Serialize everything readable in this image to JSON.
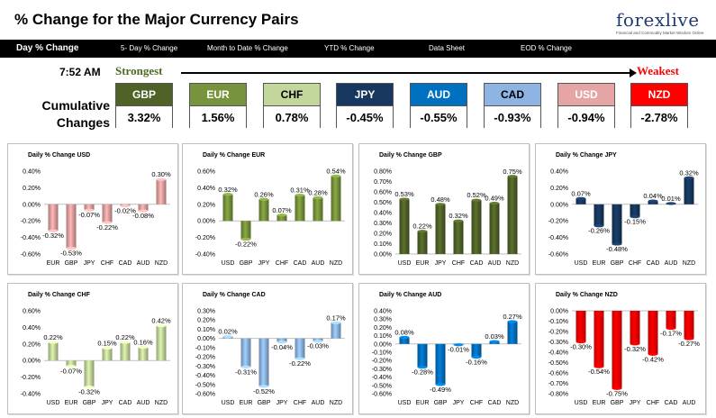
{
  "header": {
    "title": "% Change for the Major Currency Pairs",
    "logo": "forexlive",
    "logo_tag": "Financial and Commodity Market Wisdom Online"
  },
  "nav": {
    "items": [
      "Day % Change",
      "5- Day % Change",
      "Month to Date % Change",
      "YTD % Change",
      "Data Sheet",
      "EOD % Change"
    ]
  },
  "ranking": {
    "time": "7:52 AM",
    "strongest_label": "Strongest",
    "weakest_label": "Weakest",
    "cumulative_label_1": "Cumulative",
    "cumulative_label_2": "Changes",
    "currencies": [
      {
        "code": "GBP",
        "value": "3.32%",
        "head_color": "#4f6228",
        "head_text_color": "#ffffff"
      },
      {
        "code": "EUR",
        "value": "1.56%",
        "head_color": "#77933c",
        "head_text_color": "#ffffff"
      },
      {
        "code": "CHF",
        "value": "0.78%",
        "head_color": "#c3d69b",
        "head_text_color": "#000000"
      },
      {
        "code": "JPY",
        "value": "-0.45%",
        "head_color": "#17375e",
        "head_text_color": "#ffffff"
      },
      {
        "code": "AUD",
        "value": "-0.55%",
        "head_color": "#0070c0",
        "head_text_color": "#ffffff"
      },
      {
        "code": "CAD",
        "value": "-0.93%",
        "head_color": "#8db4e2",
        "head_text_color": "#000000"
      },
      {
        "code": "USD",
        "value": "-0.94%",
        "head_color": "#e6a5a5",
        "head_text_color": "#ffffff"
      },
      {
        "code": "NZD",
        "value": "-2.78%",
        "head_color": "#ff0000",
        "head_text_color": "#ffffff"
      }
    ]
  },
  "chart_data": [
    {
      "type": "bar",
      "title": "Daily % Change USD",
      "color": "#e6a0a0",
      "categories": [
        "EUR",
        "GBP",
        "JPY",
        "CHF",
        "CAD",
        "AUD",
        "NZD"
      ],
      "values": [
        -0.32,
        -0.53,
        -0.07,
        -0.22,
        -0.02,
        -0.08,
        0.3
      ],
      "labels": [
        "-0.32%",
        "-0.53%",
        "-0.07%",
        "-0.22%",
        "-0.02%",
        "-0.08%",
        "0.30%"
      ],
      "ylim": [
        -0.6,
        0.4
      ],
      "ticks": [
        "0.40%",
        "0.20%",
        "0.00%",
        "-0.20%",
        "-0.40%",
        "-0.60%"
      ]
    },
    {
      "type": "bar",
      "title": "Daily % Change EUR",
      "color": "#77933c",
      "categories": [
        "USD",
        "GBP",
        "JPY",
        "CHF",
        "CAD",
        "AUD",
        "NZD"
      ],
      "values": [
        0.32,
        -0.22,
        0.26,
        0.07,
        0.31,
        0.28,
        0.54
      ],
      "labels": [
        "0.32%",
        "-0.22%",
        "0.26%",
        "0.07%",
        "0.31%",
        "0.28%",
        "0.54%"
      ],
      "ylim": [
        -0.4,
        0.6
      ],
      "ticks": [
        "0.60%",
        "0.40%",
        "0.20%",
        "0.00%",
        "-0.20%",
        "-0.40%"
      ]
    },
    {
      "type": "bar",
      "title": "Daily % Change GBP",
      "color": "#4f6228",
      "categories": [
        "USD",
        "EUR",
        "JPY",
        "CHF",
        "CAD",
        "AUD",
        "NZD"
      ],
      "values": [
        0.53,
        0.22,
        0.48,
        0.32,
        0.52,
        0.49,
        0.75
      ],
      "labels": [
        "0.53%",
        "0.22%",
        "0.48%",
        "0.32%",
        "0.52%",
        "0.49%",
        "0.75%"
      ],
      "ylim": [
        0,
        0.8
      ],
      "ticks": [
        "0.80%",
        "0.70%",
        "0.60%",
        "0.50%",
        "0.40%",
        "0.30%",
        "0.20%",
        "0.10%",
        "0.00%"
      ]
    },
    {
      "type": "bar",
      "title": "Daily % Change JPY",
      "color": "#17375e",
      "categories": [
        "USD",
        "EUR",
        "GBP",
        "CHF",
        "CAD",
        "AUD",
        "NZD"
      ],
      "values": [
        0.07,
        -0.26,
        -0.48,
        -0.15,
        0.04,
        0.01,
        0.32
      ],
      "labels": [
        "0.07%",
        "-0.26%",
        "-0.48%",
        "-0.15%",
        "0.04%",
        "0.01%",
        "0.32%"
      ],
      "ylim": [
        -0.6,
        0.4
      ],
      "ticks": [
        "0.40%",
        "0.20%",
        "0.00%",
        "-0.20%",
        "-0.40%",
        "-0.60%"
      ]
    },
    {
      "type": "bar",
      "title": "Daily % Change CHF",
      "color": "#c3d69b",
      "categories": [
        "USD",
        "EUR",
        "GBP",
        "JPY",
        "CAD",
        "AUD",
        "NZD"
      ],
      "values": [
        0.22,
        -0.07,
        -0.32,
        0.15,
        0.22,
        0.16,
        0.42
      ],
      "labels": [
        "0.22%",
        "-0.07%",
        "-0.32%",
        "0.15%",
        "0.22%",
        "0.16%",
        "0.42%"
      ],
      "ylim": [
        -0.4,
        0.6
      ],
      "ticks": [
        "0.60%",
        "0.40%",
        "0.20%",
        "0.00%",
        "-0.20%",
        "-0.40%"
      ]
    },
    {
      "type": "bar",
      "title": "Daily % Change CAD",
      "color": "#8db4e2",
      "categories": [
        "USD",
        "EUR",
        "GBP",
        "JPY",
        "CHF",
        "AUD",
        "NZD"
      ],
      "values": [
        0.02,
        -0.31,
        -0.52,
        -0.04,
        -0.22,
        -0.03,
        0.17
      ],
      "labels": [
        "0.02%",
        "-0.31%",
        "-0.52%",
        "-0.04%",
        "-0.22%",
        "-0.03%",
        "0.17%"
      ],
      "ylim": [
        -0.6,
        0.3
      ],
      "ticks": [
        "0.30%",
        "0.20%",
        "0.10%",
        "0.00%",
        "-0.10%",
        "-0.20%",
        "-0.30%",
        "-0.40%",
        "-0.50%",
        "-0.60%"
      ]
    },
    {
      "type": "bar",
      "title": "Daily % Change AUD",
      "color": "#0070c0",
      "categories": [
        "USD",
        "EUR",
        "GBP",
        "JPY",
        "CHF",
        "CAD",
        "NZD"
      ],
      "values": [
        0.08,
        -0.28,
        -0.49,
        -0.01,
        -0.16,
        0.03,
        0.27
      ],
      "labels": [
        "0.08%",
        "-0.28%",
        "-0.49%",
        "-0.01%",
        "-0.16%",
        "0.03%",
        "0.27%"
      ],
      "ylim": [
        -0.6,
        0.4
      ],
      "ticks": [
        "0.40%",
        "0.30%",
        "0.20%",
        "0.10%",
        "0.00%",
        "-0.10%",
        "-0.20%",
        "-0.30%",
        "-0.40%",
        "-0.50%",
        "-0.60%"
      ]
    },
    {
      "type": "bar",
      "title": "Daily % Change NZD",
      "color": "#ff0000",
      "categories": [
        "USD",
        "EUR",
        "GBP",
        "JPY",
        "CHF",
        "CAD",
        "AUD"
      ],
      "values": [
        -0.3,
        -0.54,
        -0.75,
        -0.32,
        -0.42,
        -0.17,
        -0.27
      ],
      "labels": [
        "-0.30%",
        "-0.54%",
        "-0.75%",
        "-0.32%",
        "-0.42%",
        "-0.17%",
        "-0.27%"
      ],
      "ylim": [
        -0.8,
        0
      ],
      "ticks": [
        "0.00%",
        "-0.10%",
        "-0.20%",
        "-0.30%",
        "-0.40%",
        "-0.50%",
        "-0.60%",
        "-0.70%",
        "-0.80%"
      ]
    }
  ]
}
